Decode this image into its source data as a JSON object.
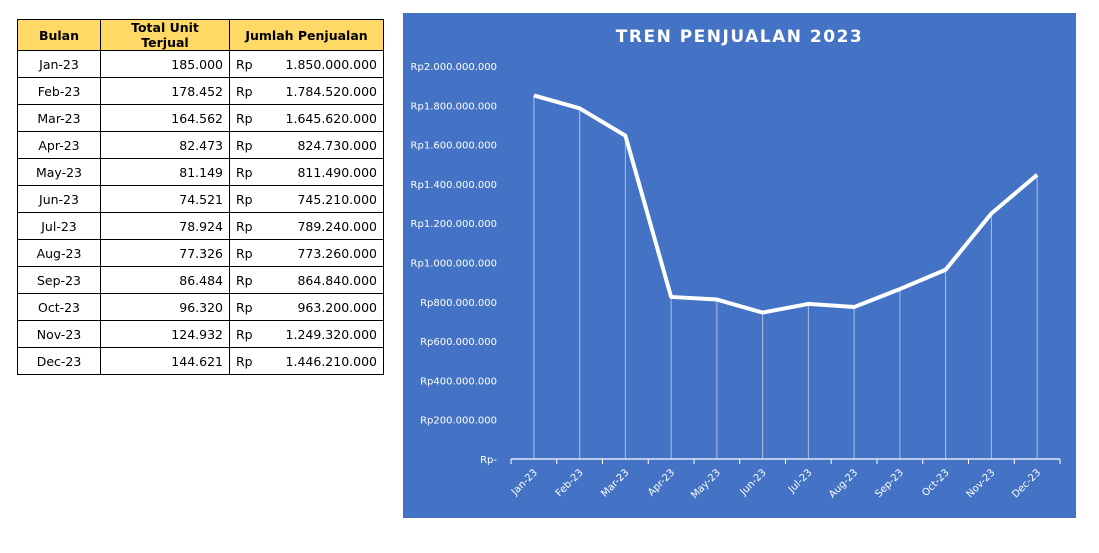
{
  "table": {
    "headers": [
      "Bulan",
      "Total Unit Terjual",
      "Jumlah Penjualan"
    ],
    "currency": "Rp",
    "rows": [
      [
        "Jan-23",
        "185.000",
        "1.850.000.000"
      ],
      [
        "Feb-23",
        "178.452",
        "1.784.520.000"
      ],
      [
        "Mar-23",
        "164.562",
        "1.645.620.000"
      ],
      [
        "Apr-23",
        "82.473",
        "824.730.000"
      ],
      [
        "May-23",
        "81.149",
        "811.490.000"
      ],
      [
        "Jun-23",
        "74.521",
        "745.210.000"
      ],
      [
        "Jul-23",
        "78.924",
        "789.240.000"
      ],
      [
        "Aug-23",
        "77.326",
        "773.260.000"
      ],
      [
        "Sep-23",
        "86.484",
        "864.840.000"
      ],
      [
        "Oct-23",
        "96.320",
        "963.200.000"
      ],
      [
        "Nov-23",
        "124.932",
        "1.249.320.000"
      ],
      [
        "Dec-23",
        "144.621",
        "1.446.210.000"
      ]
    ]
  },
  "chart_data": {
    "type": "line",
    "title": "TREN PENJUALAN 2023",
    "categories": [
      "Jan-23",
      "Feb-23",
      "Mar-23",
      "Apr-23",
      "May-23",
      "Jun-23",
      "Jul-23",
      "Aug-23",
      "Sep-23",
      "Oct-23",
      "Nov-23",
      "Dec-23"
    ],
    "values": [
      1850000000,
      1784520000,
      1645620000,
      824730000,
      811490000,
      745210000,
      789240000,
      773260000,
      864840000,
      963200000,
      1249320000,
      1446210000
    ],
    "ylim": [
      0,
      2000000000
    ],
    "ytick_labels": [
      "Rp-",
      "Rp200.000.000",
      "Rp400.000.000",
      "Rp600.000.000",
      "Rp800.000.000",
      "Rp1.000.000.000",
      "Rp1.200.000.000",
      "Rp1.400.000.000",
      "Rp1.600.000.000",
      "Rp1.800.000.000",
      "Rp2.000.000.000"
    ],
    "grid": false,
    "drop_lines": true,
    "background": "#4472C4",
    "line_color": "#FFFFFF"
  }
}
